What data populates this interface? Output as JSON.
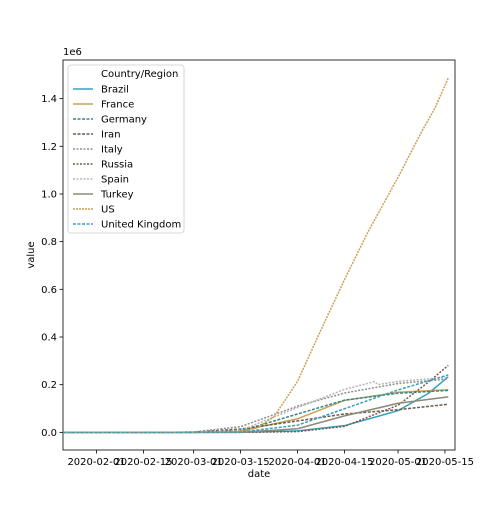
{
  "chart_data": {
    "type": "line",
    "xlabel": "date",
    "ylabel": "value",
    "y_multiplier_label": "1e6",
    "x_domain": [
      "2020-01-22",
      "2020-05-18"
    ],
    "ylim": [
      -0.074,
      1.562
    ],
    "x_ticks": [
      "2020-02-01",
      "2020-02-15",
      "2020-03-01",
      "2020-03-15",
      "2020-04-01",
      "2020-04-15",
      "2020-05-01",
      "2020-05-15"
    ],
    "x_tick_labels": [
      "2020-02-01",
      "2020-02-15",
      "2020-03-01",
      "2020-03-15",
      "2020-04-01",
      "2020-04-15",
      "2020-05-01",
      "2020-05-15"
    ],
    "y_ticks": [
      0.0,
      0.2,
      0.4,
      0.6,
      0.8,
      1.0,
      1.2,
      1.4
    ],
    "y_tick_labels": [
      "0.0",
      "0.2",
      "0.4",
      "0.6",
      "0.8",
      "1.0",
      "1.2",
      "1.4"
    ],
    "legend": {
      "title": "Country/Region",
      "placement": "top-left"
    },
    "grid": false,
    "series": [
      {
        "name": "Brazil",
        "color": "#3a9ec2",
        "dash": "",
        "points": [
          [
            "2020-01-22",
            0
          ],
          [
            "2020-03-01",
            0
          ],
          [
            "2020-03-15",
            0.0002
          ],
          [
            "2020-04-01",
            0.006
          ],
          [
            "2020-04-15",
            0.028
          ],
          [
            "2020-05-01",
            0.091
          ],
          [
            "2020-05-10",
            0.163
          ],
          [
            "2020-05-16",
            0.233
          ]
        ]
      },
      {
        "name": "France",
        "color": "#c9a253",
        "dash": "",
        "points": [
          [
            "2020-01-22",
            0
          ],
          [
            "2020-02-25",
            0
          ],
          [
            "2020-03-01",
            0.0001
          ],
          [
            "2020-03-15",
            0.0054
          ],
          [
            "2020-04-01",
            0.057
          ],
          [
            "2020-04-15",
            0.134
          ],
          [
            "2020-05-01",
            0.168
          ],
          [
            "2020-05-16",
            0.179
          ]
        ]
      },
      {
        "name": "Germany",
        "color": "#2f8a8c",
        "dash": "3,1.5",
        "points": [
          [
            "2020-01-22",
            0
          ],
          [
            "2020-02-25",
            0
          ],
          [
            "2020-03-01",
            0.0001
          ],
          [
            "2020-03-15",
            0.006
          ],
          [
            "2020-04-01",
            0.077
          ],
          [
            "2020-04-15",
            0.135
          ],
          [
            "2020-05-01",
            0.164
          ],
          [
            "2020-05-16",
            0.176
          ]
        ]
      },
      {
        "name": "Iran",
        "color": "#6b5a48",
        "dash": "3,1.5",
        "points": [
          [
            "2020-01-22",
            0
          ],
          [
            "2020-02-19",
            0
          ],
          [
            "2020-03-01",
            0.001
          ],
          [
            "2020-03-15",
            0.014
          ],
          [
            "2020-04-01",
            0.048
          ],
          [
            "2020-04-15",
            0.077
          ],
          [
            "2020-05-01",
            0.095
          ],
          [
            "2020-05-16",
            0.118
          ]
        ]
      },
      {
        "name": "Italy",
        "color": "#8f8f8f",
        "dash": "2,1.5",
        "points": [
          [
            "2020-01-22",
            0
          ],
          [
            "2020-02-21",
            0
          ],
          [
            "2020-03-01",
            0.0017
          ],
          [
            "2020-03-15",
            0.024
          ],
          [
            "2020-04-01",
            0.11
          ],
          [
            "2020-04-15",
            0.165
          ],
          [
            "2020-05-01",
            0.205
          ],
          [
            "2020-05-16",
            0.224
          ]
        ]
      },
      {
        "name": "Russia",
        "color": "#7a5a45",
        "dash": "2,1.5",
        "points": [
          [
            "2020-01-22",
            0
          ],
          [
            "2020-03-15",
            0.0001
          ],
          [
            "2020-04-01",
            0.003
          ],
          [
            "2020-04-15",
            0.025
          ],
          [
            "2020-05-01",
            0.114
          ],
          [
            "2020-05-10",
            0.21
          ],
          [
            "2020-05-16",
            0.281
          ]
        ]
      },
      {
        "name": "Spain",
        "color": "#b5b5b5",
        "dash": "2,1.5",
        "points": [
          [
            "2020-01-22",
            0
          ],
          [
            "2020-02-25",
            0
          ],
          [
            "2020-03-01",
            0.0001
          ],
          [
            "2020-03-15",
            0.008
          ],
          [
            "2020-04-01",
            0.104
          ],
          [
            "2020-04-15",
            0.18
          ],
          [
            "2020-04-24",
            0.213
          ],
          [
            "2020-04-25",
            0.2
          ],
          [
            "2020-05-01",
            0.214
          ],
          [
            "2020-05-16",
            0.231
          ]
        ]
      },
      {
        "name": "Turkey",
        "color": "#8a8a78",
        "dash": "",
        "points": [
          [
            "2020-01-22",
            0
          ],
          [
            "2020-03-10",
            0
          ],
          [
            "2020-03-15",
            0.0001
          ],
          [
            "2020-04-01",
            0.015
          ],
          [
            "2020-04-15",
            0.069
          ],
          [
            "2020-05-01",
            0.122
          ],
          [
            "2020-05-16",
            0.149
          ]
        ]
      },
      {
        "name": "US",
        "color": "#c9a253",
        "dash": "2,1",
        "points": [
          [
            "2020-01-22",
            0
          ],
          [
            "2020-03-01",
            0.0001
          ],
          [
            "2020-03-15",
            0.003
          ],
          [
            "2020-03-20",
            0.019
          ],
          [
            "2020-03-25",
            0.066
          ],
          [
            "2020-04-01",
            0.214
          ],
          [
            "2020-04-08",
            0.43
          ],
          [
            "2020-04-15",
            0.64
          ],
          [
            "2020-04-22",
            0.84
          ],
          [
            "2020-05-01",
            1.07
          ],
          [
            "2020-05-08",
            1.26
          ],
          [
            "2020-05-12",
            1.36
          ],
          [
            "2020-05-16",
            1.487
          ]
        ]
      },
      {
        "name": "United Kingdom",
        "color": "#3a9ec2",
        "dash": "3,1.5",
        "points": [
          [
            "2020-01-22",
            0
          ],
          [
            "2020-03-01",
            0.0001
          ],
          [
            "2020-03-15",
            0.0012
          ],
          [
            "2020-04-01",
            0.03
          ],
          [
            "2020-04-15",
            0.099
          ],
          [
            "2020-05-01",
            0.178
          ],
          [
            "2020-05-16",
            0.241
          ]
        ]
      }
    ]
  }
}
